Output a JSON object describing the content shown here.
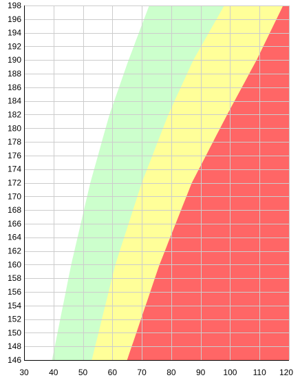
{
  "chart_data": {
    "type": "area",
    "title": "",
    "xlabel": "",
    "ylabel": "",
    "xlim": [
      30,
      120
    ],
    "ylim": [
      146,
      198
    ],
    "x_ticks": [
      30,
      40,
      50,
      60,
      70,
      80,
      90,
      100,
      110,
      120
    ],
    "y_ticks": [
      146,
      148,
      150,
      152,
      154,
      156,
      158,
      160,
      162,
      164,
      166,
      168,
      170,
      172,
      174,
      176,
      178,
      180,
      182,
      184,
      186,
      188,
      190,
      192,
      194,
      196,
      198
    ],
    "grid": true,
    "legend": "none",
    "background_color": "#ffffff",
    "boundaries": [
      {
        "name": "",
        "color": "#ccffcc",
        "points": [
          [
            39.5,
            146
          ],
          [
            46,
            160
          ],
          [
            52.5,
            172
          ],
          [
            59,
            182
          ],
          [
            65.5,
            190
          ],
          [
            72.5,
            198
          ]
        ]
      },
      {
        "name": "",
        "color": "#ffff99",
        "points": [
          [
            53,
            146
          ],
          [
            61,
            160
          ],
          [
            70,
            172
          ],
          [
            79,
            182
          ],
          [
            87.5,
            190
          ],
          [
            98,
            198
          ]
        ]
      },
      {
        "name": "",
        "color": "#ff6666",
        "points": [
          [
            65,
            146
          ],
          [
            76,
            160
          ],
          [
            87,
            172
          ],
          [
            99,
            182
          ],
          [
            109,
            190
          ],
          [
            118,
            198
          ]
        ]
      }
    ]
  }
}
